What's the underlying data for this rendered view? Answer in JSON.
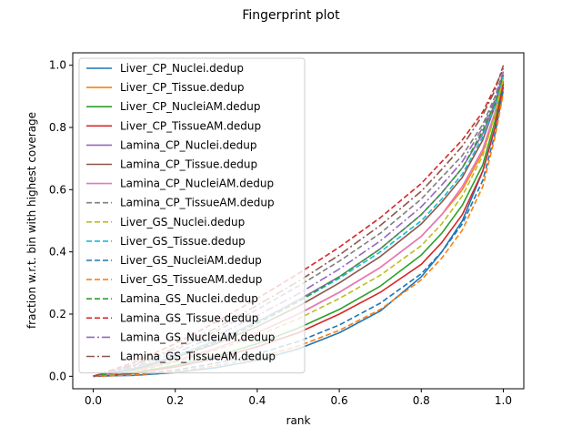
{
  "chart_data": {
    "type": "line",
    "title": "Fingerprint plot",
    "xlabel": "rank",
    "ylabel": "fraction w.r.t. bin with highest coverage",
    "xlim": [
      -0.05,
      1.05
    ],
    "ylim": [
      -0.04,
      1.04
    ],
    "xticks": [
      "0.0",
      "0.2",
      "0.4",
      "0.6",
      "0.8",
      "1.0"
    ],
    "yticks": [
      "0.0",
      "0.2",
      "0.4",
      "0.6",
      "0.8",
      "1.0"
    ],
    "grid": false,
    "legend_position": "upper-left",
    "x": [
      0,
      0.1,
      0.2,
      0.3,
      0.4,
      0.5,
      0.6,
      0.7,
      0.8,
      0.85,
      0.9,
      0.95,
      0.98,
      1.0
    ],
    "series": [
      {
        "name": "Liver_CP_Nuclei.dedup",
        "color": "#1f77b4",
        "dash": "solid",
        "values": [
          0,
          0.003,
          0.012,
          0.028,
          0.052,
          0.088,
          0.14,
          0.21,
          0.32,
          0.4,
          0.5,
          0.66,
          0.8,
          0.93
        ]
      },
      {
        "name": "Liver_CP_Tissue.dedup",
        "color": "#ff7f0e",
        "dash": "solid",
        "values": [
          0,
          0.02,
          0.05,
          0.09,
          0.14,
          0.2,
          0.27,
          0.35,
          0.45,
          0.52,
          0.6,
          0.72,
          0.84,
          0.95
        ]
      },
      {
        "name": "Liver_CP_NucleiAM.dedup",
        "color": "#2ca02c",
        "dash": "solid",
        "values": [
          0,
          0.012,
          0.035,
          0.065,
          0.105,
          0.155,
          0.215,
          0.29,
          0.39,
          0.46,
          0.55,
          0.68,
          0.82,
          0.95
        ]
      },
      {
        "name": "Liver_CP_TissueAM.dedup",
        "color": "#d62728",
        "dash": "solid",
        "values": [
          0,
          0.01,
          0.03,
          0.058,
          0.095,
          0.14,
          0.2,
          0.27,
          0.36,
          0.43,
          0.52,
          0.66,
          0.8,
          0.94
        ]
      },
      {
        "name": "Lamina_CP_Nuclei.dedup",
        "color": "#9467bd",
        "dash": "solid",
        "values": [
          0,
          0.025,
          0.065,
          0.115,
          0.175,
          0.245,
          0.32,
          0.41,
          0.52,
          0.59,
          0.67,
          0.78,
          0.88,
          0.97
        ]
      },
      {
        "name": "Lamina_CP_Tissue.dedup",
        "color": "#8c564b",
        "dash": "solid",
        "values": [
          0,
          0.022,
          0.06,
          0.105,
          0.16,
          0.225,
          0.3,
          0.385,
          0.49,
          0.56,
          0.64,
          0.76,
          0.87,
          0.97
        ]
      },
      {
        "name": "Lamina_CP_NucleiAM.dedup",
        "color": "#e377c2",
        "dash": "solid",
        "values": [
          0,
          0.018,
          0.05,
          0.09,
          0.14,
          0.2,
          0.27,
          0.35,
          0.45,
          0.52,
          0.61,
          0.73,
          0.85,
          0.96
        ]
      },
      {
        "name": "Lamina_CP_TissueAM.dedup",
        "color": "#7f7f7f",
        "dash": "dashed",
        "values": [
          0,
          0.035,
          0.085,
          0.145,
          0.215,
          0.29,
          0.37,
          0.46,
          0.57,
          0.64,
          0.71,
          0.81,
          0.9,
          0.98
        ]
      },
      {
        "name": "Liver_GS_Nuclei.dedup",
        "color": "#bcbd22",
        "dash": "dashed",
        "values": [
          0,
          0.015,
          0.045,
          0.085,
          0.13,
          0.185,
          0.25,
          0.325,
          0.42,
          0.49,
          0.58,
          0.71,
          0.84,
          0.96
        ]
      },
      {
        "name": "Liver_GS_Tissue.dedup",
        "color": "#17becf",
        "dash": "dashed",
        "values": [
          0,
          0.025,
          0.065,
          0.115,
          0.175,
          0.24,
          0.315,
          0.4,
          0.5,
          0.57,
          0.65,
          0.77,
          0.87,
          0.97
        ]
      },
      {
        "name": "Liver_GS_NucleiAM.dedup",
        "color": "#1f77b4",
        "dash": "dashed",
        "values": [
          0,
          0.006,
          0.02,
          0.042,
          0.072,
          0.112,
          0.165,
          0.235,
          0.33,
          0.4,
          0.49,
          0.63,
          0.78,
          0.92
        ]
      },
      {
        "name": "Liver_GS_TissueAM.dedup",
        "color": "#ff7f0e",
        "dash": "dashed",
        "values": [
          0,
          0.004,
          0.015,
          0.034,
          0.06,
          0.097,
          0.148,
          0.215,
          0.31,
          0.38,
          0.47,
          0.61,
          0.77,
          0.91
        ]
      },
      {
        "name": "Lamina_GS_Nuclei.dedup",
        "color": "#2ca02c",
        "dash": "dashed",
        "values": [
          0,
          0.022,
          0.06,
          0.11,
          0.17,
          0.24,
          0.32,
          0.41,
          0.52,
          0.59,
          0.67,
          0.79,
          0.88,
          0.97
        ]
      },
      {
        "name": "Lamina_GS_Tissue.dedup",
        "color": "#d62728",
        "dash": "dashed",
        "values": [
          0,
          0.045,
          0.105,
          0.175,
          0.25,
          0.33,
          0.415,
          0.51,
          0.62,
          0.69,
          0.76,
          0.85,
          0.93,
          0.99
        ]
      },
      {
        "name": "Lamina_GS_NucleiAM.dedup",
        "color": "#9467bd",
        "dash": "dashdot",
        "values": [
          0,
          0.03,
          0.075,
          0.13,
          0.195,
          0.265,
          0.345,
          0.435,
          0.545,
          0.615,
          0.69,
          0.8,
          0.89,
          0.98
        ]
      },
      {
        "name": "Lamina_GS_TissueAM.dedup",
        "color": "#8c564b",
        "dash": "dashdot",
        "values": [
          0,
          0.038,
          0.092,
          0.155,
          0.228,
          0.305,
          0.39,
          0.485,
          0.595,
          0.665,
          0.74,
          0.84,
          0.92,
          1.0
        ]
      }
    ]
  }
}
